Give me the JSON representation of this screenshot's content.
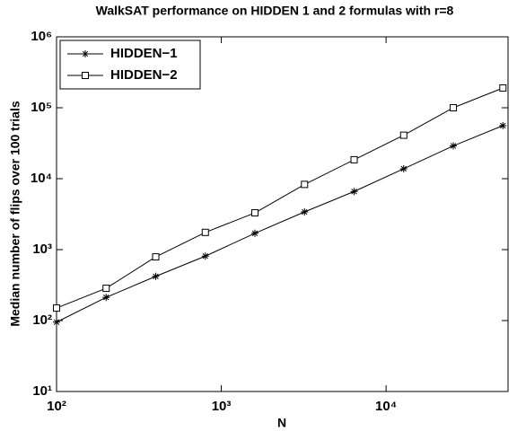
{
  "chart_data": {
    "type": "line",
    "title": "WalkSAT performance on HIDDEN 1 and 2 formulas with r=8",
    "x_label": "N",
    "y_label": "Median number of flips over 100 trials",
    "x": [
      100,
      200,
      400,
      800,
      1600,
      3200,
      6400,
      12800,
      25600,
      51200
    ],
    "series": [
      {
        "name": "HIDDEN−1",
        "color": "#000000",
        "marker": "star",
        "values": [
          95,
          212,
          420,
          810,
          1700,
          3400,
          6600,
          13800,
          29000,
          56000
        ]
      },
      {
        "name": "HIDDEN−2",
        "color": "#000000",
        "marker": "square",
        "values": [
          150,
          285,
          790,
          1750,
          3300,
          8300,
          18500,
          41000,
          100000,
          190000
        ]
      }
    ],
    "xscale": "log",
    "yscale": "log",
    "xlim": [
      100,
      55000
    ],
    "ylim": [
      10,
      1000000
    ],
    "xticks": [
      {
        "value": 100,
        "label": "10²"
      },
      {
        "value": 1000,
        "label": "10³"
      },
      {
        "value": 10000,
        "label": "10⁴"
      }
    ],
    "yticks": [
      {
        "value": 10,
        "label": "10¹"
      },
      {
        "value": 100,
        "label": "10²"
      },
      {
        "value": 1000,
        "label": "10³"
      },
      {
        "value": 10000,
        "label": "10⁴"
      },
      {
        "value": 100000,
        "label": "10⁵"
      },
      {
        "value": 1000000,
        "label": "10⁶"
      }
    ],
    "legend": "upper left"
  }
}
